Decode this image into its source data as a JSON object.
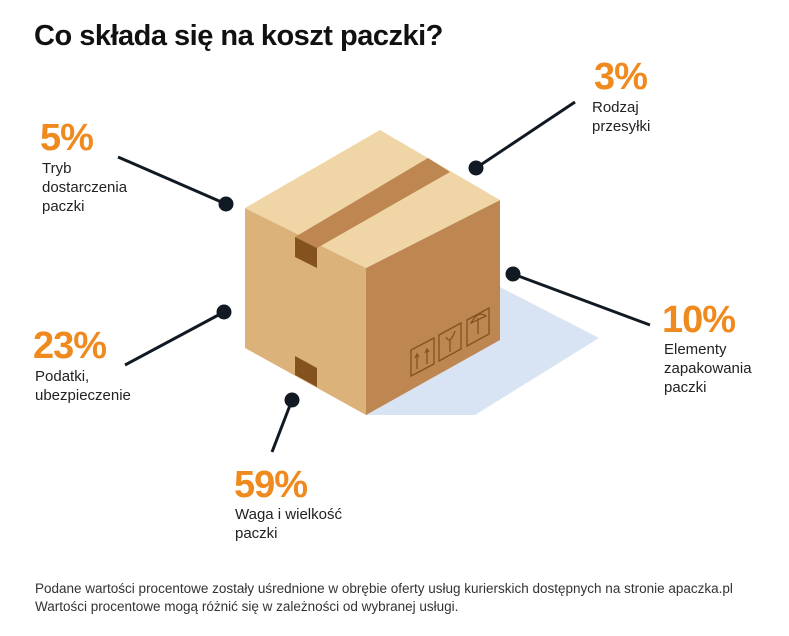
{
  "title": "Co składa się na koszt paczki?",
  "colors": {
    "accent": "#ef8a1f",
    "box_top": "#f0d6a6",
    "box_left": "#dcb27b",
    "box_right": "#be8650",
    "tape": "#be8650",
    "tape_dark": "#84521f",
    "shadow": "#d8e4f3",
    "line": "#111a22"
  },
  "items": [
    {
      "percent": "5%",
      "label": [
        "Tryb",
        "dostarczenia",
        "paczki"
      ]
    },
    {
      "percent": "3%",
      "label": [
        "Rodzaj",
        "przesyłki"
      ]
    },
    {
      "percent": "10%",
      "label": [
        "Elementy",
        "zapakowania",
        "paczki"
      ]
    },
    {
      "percent": "23%",
      "label": [
        "Podatki,",
        "ubezpieczenie"
      ]
    },
    {
      "percent": "59%",
      "label": [
        "Waga i wielkość",
        "paczki"
      ]
    }
  ],
  "box_icons": [
    "this-side-up-icon",
    "fragile-icon",
    "keep-dry-icon"
  ],
  "footnote": [
    "Podane wartości procentowe zostały uśrednione w obrębie oferty usług kurierskich dostępnych na stronie apaczka.pl",
    "Wartości procentowe mogą różnić się w zależności od wybranej usługi."
  ]
}
